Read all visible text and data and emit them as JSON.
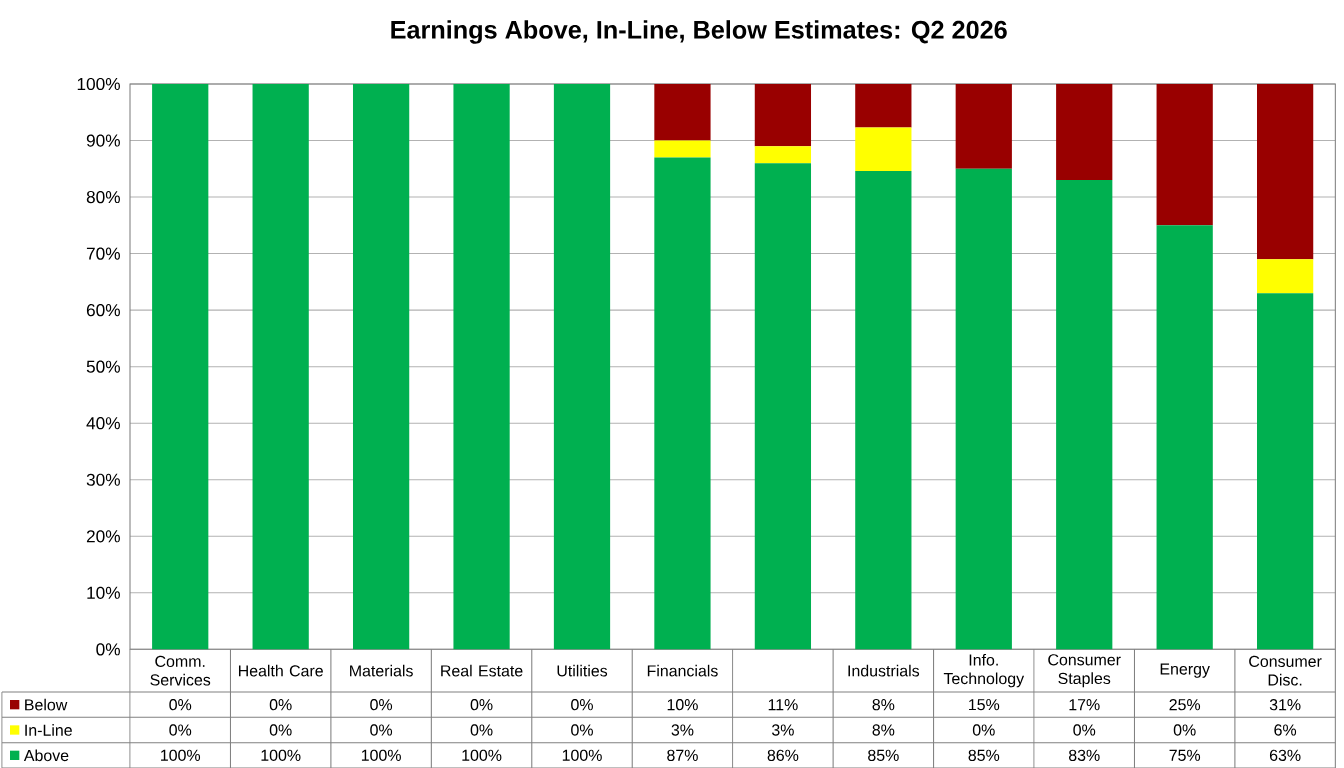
{
  "chart_data": {
    "type": "bar",
    "stacked": true,
    "title": "Earnings Above, In-Line, Below Estimates: Q2 2026",
    "categories": [
      "Comm. Services",
      "Health Care",
      "Materials",
      "Real Estate",
      "Utilities",
      "Financials",
      null,
      "Industrials",
      "Info. Technology",
      "Consumer Staples",
      "Energy",
      "Consumer Disc."
    ],
    "series": [
      {
        "name": "Above",
        "color": "#00b050",
        "values": [
          100,
          100,
          100,
          100,
          100,
          87,
          86,
          84.6,
          85,
          83,
          75,
          63
        ],
        "value_labels": [
          "100%",
          "100%",
          "100%",
          "100%",
          "100%",
          "87%",
          "86%",
          "85%",
          "85%",
          "83%",
          "75%",
          "63%"
        ]
      },
      {
        "name": "In-Line",
        "color": "#ffff00",
        "values": [
          0,
          0,
          0,
          0,
          0,
          3,
          3,
          7.7,
          0,
          0,
          0,
          6
        ],
        "value_labels": [
          "0%",
          "0%",
          "0%",
          "0%",
          "0%",
          "3%",
          "3%",
          "8%",
          "0%",
          "0%",
          "0%",
          "6%"
        ]
      },
      {
        "name": "Below",
        "color": "#990000",
        "values": [
          0,
          0,
          0,
          0,
          0,
          10,
          11,
          7.7,
          15,
          17,
          25,
          31
        ],
        "value_labels": [
          "0%",
          "0%",
          "0%",
          "0%",
          "0%",
          "10%",
          "11%",
          "8%",
          "15%",
          "17%",
          "25%",
          "31%"
        ]
      }
    ],
    "ylim": [
      0,
      100
    ],
    "yticks": [
      {
        "value": 0,
        "label": "0%"
      },
      {
        "value": 10,
        "label": "10%"
      },
      {
        "value": 20,
        "label": "20%"
      },
      {
        "value": 30,
        "label": "30%"
      },
      {
        "value": 40,
        "label": "40%"
      },
      {
        "value": 50,
        "label": "50%"
      },
      {
        "value": 60,
        "label": "60%"
      },
      {
        "value": 70,
        "label": "70%"
      },
      {
        "value": 80,
        "label": "80%"
      },
      {
        "value": 90,
        "label": "90%"
      },
      {
        "value": 100,
        "label": "100%"
      }
    ],
    "grid": "y",
    "legend": "bottom"
  }
}
